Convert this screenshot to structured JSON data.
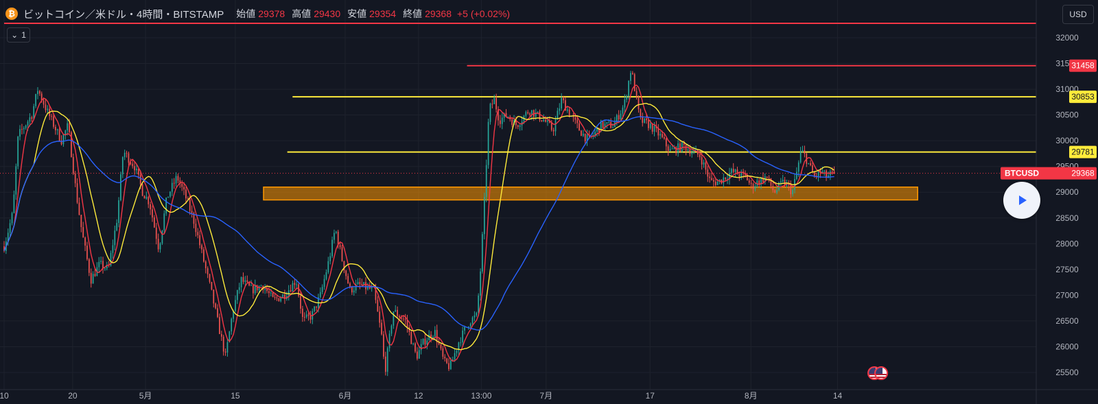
{
  "legend": {
    "coin_glyph": "₿",
    "symbol": "ビットコイン／米ドル・4時間・BITSTAMP",
    "open_label": "始値",
    "open": "29378",
    "high_label": "高値",
    "high": "29430",
    "low_label": "安値",
    "low": "29354",
    "close_label": "終値",
    "close": "29368",
    "change": "+5 (+0.02%)"
  },
  "collapse_button": {
    "chevron": "⌄",
    "count": "1"
  },
  "currency": "USD",
  "symbol_tag": {
    "label": "BTCUSD",
    "price": "29368"
  },
  "colors": {
    "background": "#131722",
    "up": "#26a69a",
    "down": "#ef5350",
    "ma_fast": "#f23645",
    "ma_mid": "#ffeb3b",
    "ma_slow": "#2962ff",
    "resistance": "#f23645",
    "support": "#ffeb3b",
    "zone": "#ff9800",
    "grid": "#1e222d"
  },
  "icons": {
    "play": "play-icon",
    "flags": "us-flag-icon"
  },
  "chart_data": {
    "type": "candlestick",
    "y_axis_ticks": [
      32000,
      31500,
      31000,
      30500,
      30000,
      29500,
      29000,
      28500,
      28000,
      27500,
      27000,
      26500,
      26000,
      25500
    ],
    "x_axis_ticks": [
      {
        "label": "10",
        "pos": 0.0
      },
      {
        "label": "20",
        "pos": 0.0666
      },
      {
        "label": "5月",
        "pos": 0.1374
      },
      {
        "label": "15",
        "pos": 0.2246
      },
      {
        "label": "6月",
        "pos": 0.3313
      },
      {
        "label": "12",
        "pos": 0.4026
      },
      {
        "label": "13:00",
        "pos": 0.4636
      },
      {
        "label": "7月",
        "pos": 0.5265
      },
      {
        "label": "17",
        "pos": 0.6275
      },
      {
        "label": "8月",
        "pos": 0.7255
      },
      {
        "label": "14",
        "pos": 0.8097
      }
    ],
    "ylim": [
      25450,
      32350
    ],
    "horizontal_lines": [
      {
        "name": "resistance-top",
        "value": 32280,
        "start": 0.0,
        "label": ""
      },
      {
        "name": "resistance",
        "value": 31458,
        "start": 0.4497,
        "label": "31458"
      },
      {
        "name": "support-upper",
        "value": 30853,
        "start": 0.2802,
        "label": "30853"
      },
      {
        "name": "support-lower",
        "value": 29781,
        "start": 0.2751,
        "label": "29781"
      }
    ],
    "zone": {
      "low": 28850,
      "high": 29100,
      "start": 0.252,
      "end": 0.8875
    },
    "last_price": 29368,
    "price_path": [
      [
        0.0,
        27950
      ],
      [
        0.0085,
        28600
      ],
      [
        0.0137,
        30100
      ],
      [
        0.0268,
        30500
      ],
      [
        0.0327,
        31000
      ],
      [
        0.0412,
        30600
      ],
      [
        0.0555,
        30000
      ],
      [
        0.0621,
        30300
      ],
      [
        0.0699,
        29000
      ],
      [
        0.0758,
        28200
      ],
      [
        0.0843,
        27300
      ],
      [
        0.0928,
        27600
      ],
      [
        0.1013,
        27500
      ],
      [
        0.1098,
        28500
      ],
      [
        0.1157,
        29800
      ],
      [
        0.1268,
        29500
      ],
      [
        0.1346,
        29000
      ],
      [
        0.1412,
        28800
      ],
      [
        0.1503,
        27900
      ],
      [
        0.1582,
        28900
      ],
      [
        0.168,
        29300
      ],
      [
        0.1765,
        28900
      ],
      [
        0.185,
        28400
      ],
      [
        0.1935,
        27700
      ],
      [
        0.202,
        27000
      ],
      [
        0.2105,
        26200
      ],
      [
        0.2151,
        25800
      ],
      [
        0.2222,
        26700
      ],
      [
        0.2302,
        27300
      ],
      [
        0.2406,
        27100
      ],
      [
        0.2511,
        27200
      ],
      [
        0.2615,
        26900
      ],
      [
        0.272,
        27000
      ],
      [
        0.2838,
        27300
      ],
      [
        0.2903,
        26500
      ],
      [
        0.2988,
        26600
      ],
      [
        0.3073,
        27000
      ],
      [
        0.3158,
        27700
      ],
      [
        0.3217,
        28300
      ],
      [
        0.3282,
        27700
      ],
      [
        0.336,
        27100
      ],
      [
        0.3445,
        27200
      ],
      [
        0.3589,
        27100
      ],
      [
        0.3668,
        26200
      ],
      [
        0.3699,
        25500
      ],
      [
        0.3779,
        26700
      ],
      [
        0.39,
        26500
      ],
      [
        0.4005,
        25800
      ],
      [
        0.4077,
        26100
      ],
      [
        0.4182,
        26300
      ],
      [
        0.4273,
        25700
      ],
      [
        0.4332,
        25600
      ],
      [
        0.4417,
        26100
      ],
      [
        0.4521,
        26500
      ],
      [
        0.4593,
        26600
      ],
      [
        0.4632,
        27600
      ],
      [
        0.4665,
        28800
      ],
      [
        0.4711,
        30600
      ],
      [
        0.4763,
        30800
      ],
      [
        0.4809,
        30400
      ],
      [
        0.4887,
        30500
      ],
      [
        0.4978,
        30300
      ],
      [
        0.5102,
        30600
      ],
      [
        0.5246,
        30400
      ],
      [
        0.5331,
        30200
      ],
      [
        0.5416,
        30800
      ],
      [
        0.5501,
        30500
      ],
      [
        0.5593,
        30200
      ],
      [
        0.5678,
        30000
      ],
      [
        0.5796,
        30300
      ],
      [
        0.592,
        30300
      ],
      [
        0.6025,
        30700
      ],
      [
        0.609,
        31400
      ],
      [
        0.6136,
        30900
      ],
      [
        0.6175,
        30400
      ],
      [
        0.6273,
        30300
      ],
      [
        0.6371,
        30100
      ],
      [
        0.6469,
        29800
      ],
      [
        0.66,
        29900
      ],
      [
        0.6763,
        29700
      ],
      [
        0.6862,
        29200
      ],
      [
        0.694,
        29200
      ],
      [
        0.7071,
        29400
      ],
      [
        0.7208,
        29300
      ],
      [
        0.726,
        29100
      ],
      [
        0.7319,
        29200
      ],
      [
        0.7403,
        29300
      ],
      [
        0.7482,
        29000
      ],
      [
        0.7573,
        29200
      ],
      [
        0.7658,
        29000
      ],
      [
        0.7691,
        29300
      ],
      [
        0.7743,
        29800
      ],
      [
        0.7782,
        29700
      ],
      [
        0.7867,
        29300
      ],
      [
        0.7939,
        29400
      ],
      [
        0.7985,
        29300
      ],
      [
        0.8064,
        29368
      ]
    ],
    "moving_averages": [
      {
        "name": "MA-fast",
        "color": "#f23645",
        "period": 6
      },
      {
        "name": "MA-mid",
        "color": "#ffeb3b",
        "period": 16
      },
      {
        "name": "MA-slow",
        "color": "#2962ff",
        "period": 60
      }
    ]
  }
}
